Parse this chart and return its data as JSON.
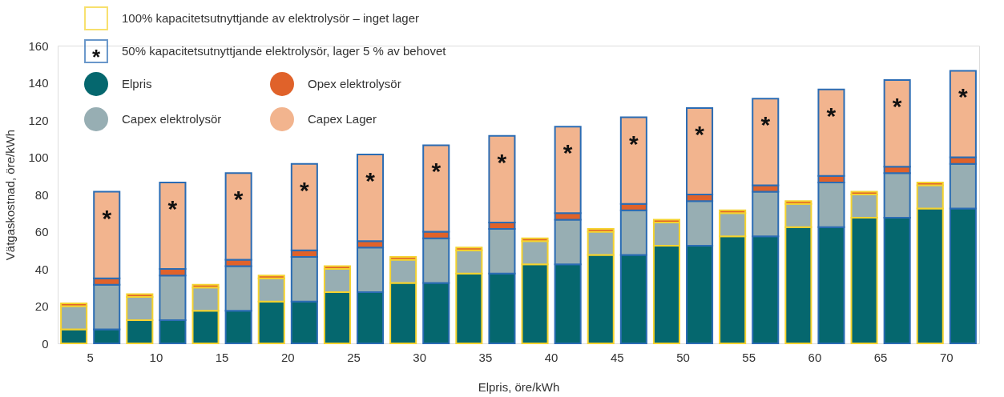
{
  "chart_data": {
    "type": "bar",
    "stacked": true,
    "categories": [
      "5",
      null,
      "10",
      null,
      "15",
      null,
      "20",
      null,
      "25",
      null,
      "30",
      null,
      "35",
      null,
      "40",
      null,
      "45",
      null,
      "50",
      null,
      "55",
      null,
      "60",
      null,
      "65",
      null,
      "70",
      null
    ],
    "xlabel": "Elpris, öre/kWh",
    "ylabel": "Vätgaskostnad, öre/kWh",
    "ylim": [
      0,
      160
    ],
    "yticks": [
      0,
      20,
      40,
      60,
      80,
      100,
      120,
      140,
      160
    ],
    "grid": false,
    "legend": "top left",
    "annotations": [
      "100% kapacitetsutnyttjande av elektrolysör – inget lager",
      "50% kapacitetsutnyttjande elektrolysör, lager 5 % av behovet",
      "*"
    ],
    "series": [
      {
        "name": "Elpris",
        "color": "#05676e",
        "values": [
          7.5,
          7.5,
          12.5,
          12.5,
          17.5,
          17.5,
          22.5,
          22.5,
          27.5,
          27.5,
          32.5,
          32.5,
          37.5,
          37.5,
          42.5,
          42.5,
          47.5,
          47.5,
          52.5,
          52.5,
          57.5,
          57.5,
          62.5,
          62.5,
          67.5,
          67.5,
          72.5,
          72.5
        ]
      },
      {
        "name": "Capex elektrolysör",
        "color": "#97aeb3",
        "values": [
          12.5,
          24,
          12.5,
          24,
          12.5,
          24,
          12.5,
          24,
          12.5,
          24,
          12.5,
          24,
          12.5,
          24,
          12.5,
          24,
          12.5,
          24,
          12.5,
          24,
          12.5,
          24,
          12.5,
          24,
          12.5,
          24,
          12.5,
          24
        ]
      },
      {
        "name": "Opex elektrolysör",
        "color": "#e0622a",
        "values": [
          1.5,
          3.5,
          1.5,
          3.5,
          1.5,
          3.5,
          1.5,
          3.5,
          1.5,
          3.5,
          1.5,
          3.5,
          1.5,
          3.5,
          1.5,
          3.5,
          1.5,
          3.5,
          1.5,
          3.5,
          1.5,
          3.5,
          1.5,
          3.5,
          1.5,
          3.5,
          1.5,
          3.5
        ]
      },
      {
        "name": "Capex Lager",
        "color": "#f2b48e",
        "values": [
          null,
          46.5,
          null,
          46.5,
          null,
          46.5,
          null,
          46.5,
          null,
          46.5,
          null,
          46.5,
          null,
          46.5,
          null,
          46.5,
          null,
          46.5,
          null,
          46.5,
          null,
          46.5,
          null,
          46.5,
          null,
          46.5,
          null,
          46.5
        ]
      }
    ]
  }
}
